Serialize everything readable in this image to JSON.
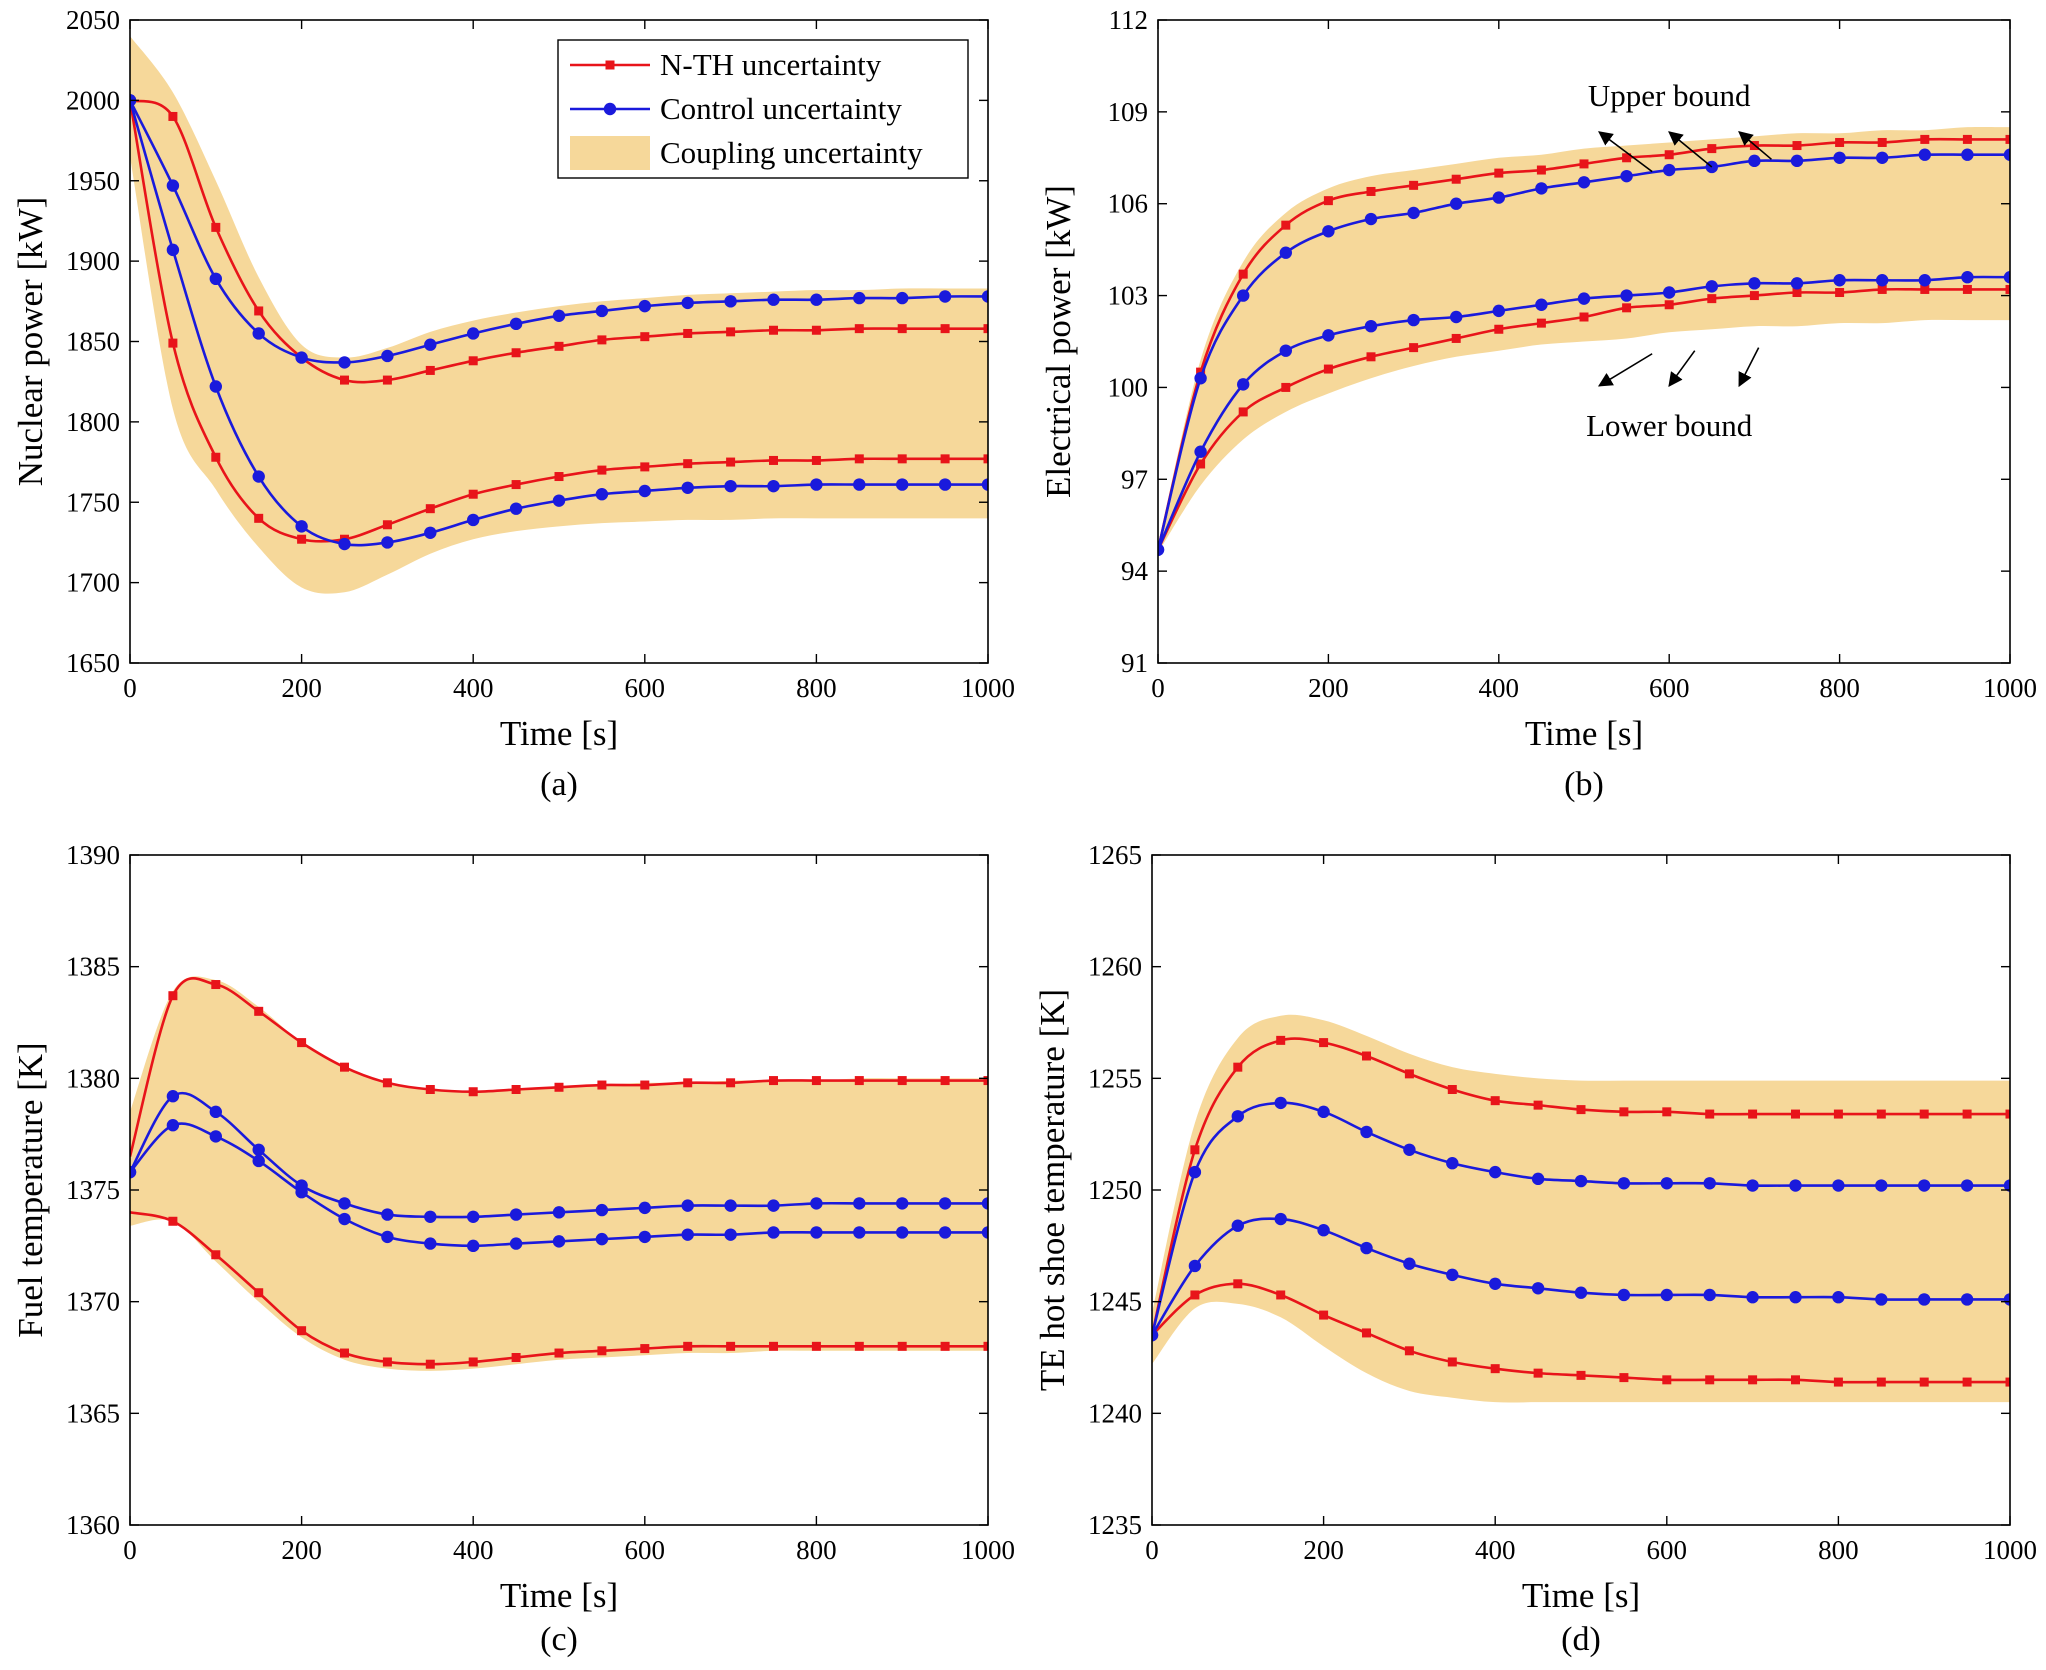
{
  "figure": {
    "captions": [
      "(a)",
      "(b)",
      "(c)",
      "(d)"
    ]
  },
  "colors": {
    "nth": "#e8141a",
    "control": "#1a1adc",
    "band": "#f6d89a",
    "axis": "#000000"
  },
  "legend": {
    "panel": 0,
    "entries": [
      {
        "label": "N-TH uncertainty",
        "kind": "nth"
      },
      {
        "label": "Control uncertainty",
        "kind": "control"
      },
      {
        "label": "Coupling uncertainty",
        "kind": "band"
      }
    ]
  },
  "annotations": [
    {
      "panel": 1,
      "text": "Upper bound",
      "anchor": [
        600,
        108.8
      ],
      "targets": [
        [
          580,
          107.05
        ],
        [
          650,
          107.2
        ],
        [
          720,
          107.45
        ]
      ]
    },
    {
      "panel": 1,
      "text": "Lower bound",
      "anchor": [
        600,
        99.4
      ],
      "targets": [
        [
          580,
          101.1
        ],
        [
          630,
          101.2
        ],
        [
          705,
          101.3
        ]
      ]
    }
  ],
  "chart_data": [
    {
      "type": "line",
      "caption": "(a)",
      "xlabel": "Time [s]",
      "ylabel": "Nuclear power [kW]",
      "xlim": [
        0,
        1000
      ],
      "ylim": [
        1650,
        2050
      ],
      "xticks": [
        0,
        200,
        400,
        600,
        800,
        1000
      ],
      "yticks": [
        1650,
        1700,
        1750,
        1800,
        1850,
        1900,
        1950,
        2000,
        2050
      ],
      "x": [
        0,
        50,
        100,
        150,
        200,
        250,
        300,
        350,
        400,
        450,
        500,
        550,
        600,
        650,
        700,
        750,
        800,
        850,
        900,
        950,
        1000
      ],
      "band": {
        "name": "Coupling uncertainty",
        "upper": [
          2040,
          2005,
          1950,
          1890,
          1848,
          1840,
          1846,
          1856,
          1863,
          1868,
          1872,
          1875,
          1877,
          1879,
          1880,
          1881,
          1882,
          1882,
          1883,
          1883,
          1883
        ],
        "lower": [
          1965,
          1808,
          1758,
          1722,
          1697,
          1694,
          1705,
          1718,
          1727,
          1732,
          1735,
          1737,
          1738,
          1739,
          1739,
          1740,
          1740,
          1740,
          1740,
          1740,
          1740
        ]
      },
      "series": [
        {
          "name": "N-TH uncertainty",
          "kind": "nth",
          "markers_from": 1,
          "values": [
            2000,
            1990,
            1921,
            1869,
            1840,
            1826,
            1826,
            1832,
            1838,
            1843,
            1847,
            1851,
            1853,
            1855,
            1856,
            1857,
            1857,
            1858,
            1858,
            1858,
            1858
          ]
        },
        {
          "name": "N-TH uncertainty",
          "kind": "nth",
          "markers_from": 1,
          "values": [
            2000,
            1849,
            1778,
            1740,
            1727,
            1727,
            1736,
            1746,
            1755,
            1761,
            1766,
            1770,
            1772,
            1774,
            1775,
            1776,
            1776,
            1777,
            1777,
            1777,
            1777
          ]
        },
        {
          "name": "Control uncertainty",
          "kind": "control",
          "markers_from": 0,
          "values": [
            2000,
            1947,
            1889,
            1855,
            1840,
            1837,
            1841,
            1848,
            1855,
            1861,
            1866,
            1869,
            1872,
            1874,
            1875,
            1876,
            1876,
            1877,
            1877,
            1878,
            1878
          ]
        },
        {
          "name": "Control uncertainty",
          "kind": "control",
          "markers_from": 0,
          "values": [
            2000,
            1907,
            1822,
            1766,
            1735,
            1724,
            1725,
            1731,
            1739,
            1746,
            1751,
            1755,
            1757,
            1759,
            1760,
            1760,
            1761,
            1761,
            1761,
            1761,
            1761
          ]
        }
      ]
    },
    {
      "type": "line",
      "caption": "(b)",
      "xlabel": "Time [s]",
      "ylabel": "Electrical power [kW]",
      "xlim": [
        0,
        1000
      ],
      "ylim": [
        91,
        112
      ],
      "xticks": [
        0,
        200,
        400,
        600,
        800,
        1000
      ],
      "yticks": [
        91,
        94,
        97,
        100,
        103,
        106,
        109,
        112
      ],
      "x": [
        0,
        50,
        100,
        150,
        200,
        250,
        300,
        350,
        400,
        450,
        500,
        550,
        600,
        650,
        700,
        750,
        800,
        850,
        900,
        950,
        1000
      ],
      "band": {
        "name": "Coupling uncertainty",
        "upper": [
          94.8,
          100.9,
          104.1,
          105.7,
          106.5,
          106.9,
          107.1,
          107.3,
          107.5,
          107.6,
          107.8,
          107.9,
          108.0,
          108.1,
          108.2,
          108.3,
          108.3,
          108.4,
          108.4,
          108.5,
          108.5
        ],
        "lower": [
          94.6,
          96.8,
          98.3,
          99.2,
          99.8,
          100.3,
          100.7,
          101.0,
          101.2,
          101.4,
          101.5,
          101.6,
          101.8,
          101.9,
          102.0,
          102.0,
          102.1,
          102.1,
          102.2,
          102.2,
          102.2
        ]
      },
      "series": [
        {
          "name": "N-TH uncertainty",
          "kind": "nth",
          "markers_from": 1,
          "values": [
            94.7,
            100.5,
            103.7,
            105.3,
            106.1,
            106.4,
            106.6,
            106.8,
            107.0,
            107.1,
            107.3,
            107.5,
            107.6,
            107.8,
            107.9,
            107.9,
            108.0,
            108.0,
            108.1,
            108.1,
            108.1
          ]
        },
        {
          "name": "N-TH uncertainty",
          "kind": "nth",
          "markers_from": 1,
          "values": [
            94.7,
            97.5,
            99.2,
            100.0,
            100.6,
            101.0,
            101.3,
            101.6,
            101.9,
            102.1,
            102.3,
            102.6,
            102.7,
            102.9,
            103.0,
            103.1,
            103.1,
            103.2,
            103.2,
            103.2,
            103.2
          ]
        },
        {
          "name": "Control uncertainty",
          "kind": "control",
          "markers_from": 0,
          "values": [
            94.7,
            100.3,
            103.0,
            104.4,
            105.1,
            105.5,
            105.7,
            106.0,
            106.2,
            106.5,
            106.7,
            106.9,
            107.1,
            107.2,
            107.4,
            107.4,
            107.5,
            107.5,
            107.6,
            107.6,
            107.6
          ]
        },
        {
          "name": "Control uncertainty",
          "kind": "control",
          "markers_from": 0,
          "values": [
            94.7,
            97.9,
            100.1,
            101.2,
            101.7,
            102.0,
            102.2,
            102.3,
            102.5,
            102.7,
            102.9,
            103.0,
            103.1,
            103.3,
            103.4,
            103.4,
            103.5,
            103.5,
            103.5,
            103.6,
            103.6
          ]
        }
      ]
    },
    {
      "type": "line",
      "caption": "(c)",
      "xlabel": "Time [s]",
      "ylabel": "Fuel temperature [K]",
      "xlim": [
        0,
        1000
      ],
      "ylim": [
        1360,
        1390
      ],
      "xticks": [
        0,
        200,
        400,
        600,
        800,
        1000
      ],
      "yticks": [
        1360,
        1365,
        1370,
        1375,
        1380,
        1385,
        1390
      ],
      "x": [
        0,
        50,
        100,
        150,
        200,
        250,
        300,
        350,
        400,
        450,
        500,
        550,
        600,
        650,
        700,
        750,
        800,
        850,
        900,
        950,
        1000
      ],
      "band": {
        "name": "Coupling uncertainty",
        "upper": [
          1378.5,
          1383.9,
          1384.4,
          1383.2,
          1381.6,
          1380.5,
          1379.8,
          1379.5,
          1379.4,
          1379.5,
          1379.6,
          1379.7,
          1379.8,
          1379.8,
          1379.9,
          1379.9,
          1379.9,
          1380.0,
          1380.0,
          1380.0,
          1380.0
        ],
        "lower": [
          1373.4,
          1373.6,
          1371.8,
          1370.0,
          1368.4,
          1367.4,
          1367.0,
          1366.9,
          1367.0,
          1367.2,
          1367.4,
          1367.5,
          1367.6,
          1367.7,
          1367.7,
          1367.8,
          1367.8,
          1367.8,
          1367.8,
          1367.8,
          1367.8
        ]
      },
      "series": [
        {
          "name": "N-TH uncertainty",
          "kind": "nth",
          "markers_from": 1,
          "values": [
            1376.5,
            1383.7,
            1384.2,
            1383.0,
            1381.6,
            1380.5,
            1379.8,
            1379.5,
            1379.4,
            1379.5,
            1379.6,
            1379.7,
            1379.7,
            1379.8,
            1379.8,
            1379.9,
            1379.9,
            1379.9,
            1379.9,
            1379.9,
            1379.9
          ]
        },
        {
          "name": "N-TH uncertainty",
          "kind": "nth",
          "markers_from": 1,
          "values": [
            1374.0,
            1373.6,
            1372.1,
            1370.4,
            1368.7,
            1367.7,
            1367.3,
            1367.2,
            1367.3,
            1367.5,
            1367.7,
            1367.8,
            1367.9,
            1368.0,
            1368.0,
            1368.0,
            1368.0,
            1368.0,
            1368.0,
            1368.0,
            1368.0
          ]
        },
        {
          "name": "Control uncertainty",
          "kind": "control",
          "markers_from": 0,
          "values": [
            1375.8,
            1379.2,
            1378.5,
            1376.8,
            1375.2,
            1374.4,
            1373.9,
            1373.8,
            1373.8,
            1373.9,
            1374.0,
            1374.1,
            1374.2,
            1374.3,
            1374.3,
            1374.3,
            1374.4,
            1374.4,
            1374.4,
            1374.4,
            1374.4
          ]
        },
        {
          "name": "Control uncertainty",
          "kind": "control",
          "markers_from": 0,
          "values": [
            1375.8,
            1377.9,
            1377.4,
            1376.3,
            1374.9,
            1373.7,
            1372.9,
            1372.6,
            1372.5,
            1372.6,
            1372.7,
            1372.8,
            1372.9,
            1373.0,
            1373.0,
            1373.1,
            1373.1,
            1373.1,
            1373.1,
            1373.1,
            1373.1
          ]
        }
      ]
    },
    {
      "type": "line",
      "caption": "(d)",
      "xlabel": "Time [s]",
      "ylabel": "TE hot shoe temperature [K]",
      "xlim": [
        0,
        1000
      ],
      "ylim": [
        1235,
        1265
      ],
      "xticks": [
        0,
        200,
        400,
        600,
        800,
        1000
      ],
      "yticks": [
        1235,
        1240,
        1245,
        1250,
        1255,
        1260,
        1265
      ],
      "x": [
        0,
        50,
        100,
        150,
        200,
        250,
        300,
        350,
        400,
        450,
        500,
        550,
        600,
        650,
        700,
        750,
        800,
        850,
        900,
        950,
        1000
      ],
      "band": {
        "name": "Coupling uncertainty",
        "upper": [
          1244.5,
          1253.0,
          1256.8,
          1257.8,
          1257.6,
          1256.9,
          1256.1,
          1255.5,
          1255.2,
          1255.0,
          1254.9,
          1254.9,
          1254.9,
          1254.9,
          1254.9,
          1254.9,
          1254.9,
          1254.9,
          1254.9,
          1254.9,
          1254.9
        ],
        "lower": [
          1242.2,
          1244.7,
          1244.9,
          1244.3,
          1243.0,
          1241.8,
          1241.0,
          1240.7,
          1240.5,
          1240.5,
          1240.5,
          1240.5,
          1240.5,
          1240.5,
          1240.5,
          1240.5,
          1240.5,
          1240.5,
          1240.5,
          1240.5,
          1240.5
        ]
      },
      "series": [
        {
          "name": "N-TH uncertainty",
          "kind": "nth",
          "markers_from": 1,
          "values": [
            1243.5,
            1251.8,
            1255.5,
            1256.7,
            1256.6,
            1256.0,
            1255.2,
            1254.5,
            1254.0,
            1253.8,
            1253.6,
            1253.5,
            1253.5,
            1253.4,
            1253.4,
            1253.4,
            1253.4,
            1253.4,
            1253.4,
            1253.4,
            1253.4
          ]
        },
        {
          "name": "N-TH uncertainty",
          "kind": "nth",
          "markers_from": 1,
          "values": [
            1243.5,
            1245.3,
            1245.8,
            1245.3,
            1244.4,
            1243.6,
            1242.8,
            1242.3,
            1242.0,
            1241.8,
            1241.7,
            1241.6,
            1241.5,
            1241.5,
            1241.5,
            1241.5,
            1241.4,
            1241.4,
            1241.4,
            1241.4,
            1241.4
          ]
        },
        {
          "name": "Control uncertainty",
          "kind": "control",
          "markers_from": 0,
          "values": [
            1243.5,
            1250.8,
            1253.3,
            1253.9,
            1253.5,
            1252.6,
            1251.8,
            1251.2,
            1250.8,
            1250.5,
            1250.4,
            1250.3,
            1250.3,
            1250.3,
            1250.2,
            1250.2,
            1250.2,
            1250.2,
            1250.2,
            1250.2,
            1250.2
          ]
        },
        {
          "name": "Control uncertainty",
          "kind": "control",
          "markers_from": 0,
          "values": [
            1243.5,
            1246.6,
            1248.4,
            1248.7,
            1248.2,
            1247.4,
            1246.7,
            1246.2,
            1245.8,
            1245.6,
            1245.4,
            1245.3,
            1245.3,
            1245.3,
            1245.2,
            1245.2,
            1245.2,
            1245.1,
            1245.1,
            1245.1,
            1245.1
          ]
        }
      ]
    }
  ]
}
